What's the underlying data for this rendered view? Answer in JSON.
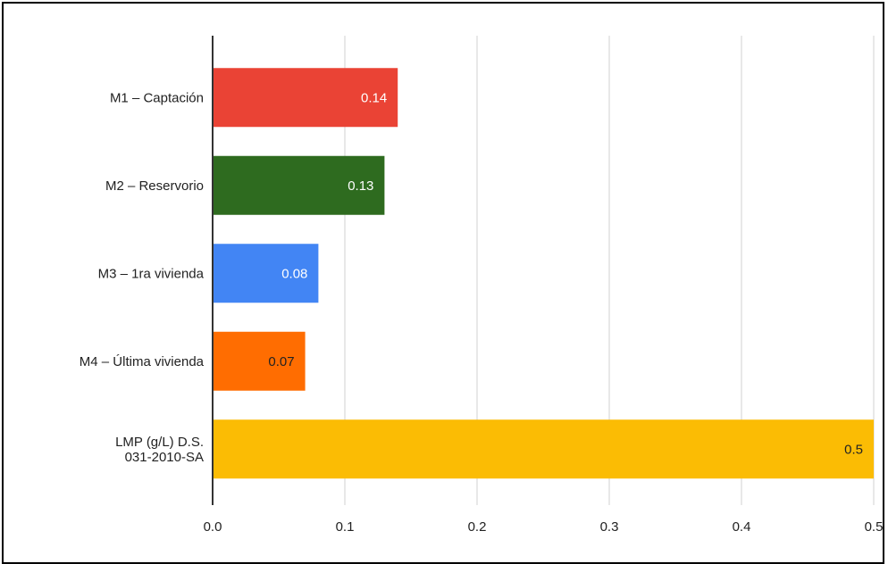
{
  "chart_data": {
    "type": "bar",
    "orientation": "horizontal",
    "categories": [
      [
        "M1 – Captación"
      ],
      [
        "M2 – Reservorio"
      ],
      [
        "M3 – 1ra vivienda"
      ],
      [
        "M4 – Última vivienda"
      ],
      [
        "LMP (g/L) D.S.",
        "031-2010-SA"
      ]
    ],
    "values": [
      0.14,
      0.13,
      0.08,
      0.07,
      0.5
    ],
    "data_labels": [
      "0.14",
      "0.13",
      "0.08",
      "0.07",
      "0.5"
    ],
    "colors": [
      "#ea4335",
      "#2e6b1f",
      "#4285f4",
      "#ff6d01",
      "#fbbc04"
    ],
    "data_label_colors": [
      "#ffffff",
      "#ffffff",
      "#ffffff",
      "#222222",
      "#222222"
    ],
    "xlim": [
      0,
      0.5
    ],
    "xticks": [
      0,
      0.1,
      0.2,
      0.3,
      0.4,
      0.5
    ],
    "xtick_labels": [
      "0.0",
      "0.1",
      "0.2",
      "0.3",
      "0.4",
      "0.5"
    ],
    "grid": "vertical",
    "legend": "none",
    "title": "",
    "xlabel": "",
    "ylabel": ""
  }
}
